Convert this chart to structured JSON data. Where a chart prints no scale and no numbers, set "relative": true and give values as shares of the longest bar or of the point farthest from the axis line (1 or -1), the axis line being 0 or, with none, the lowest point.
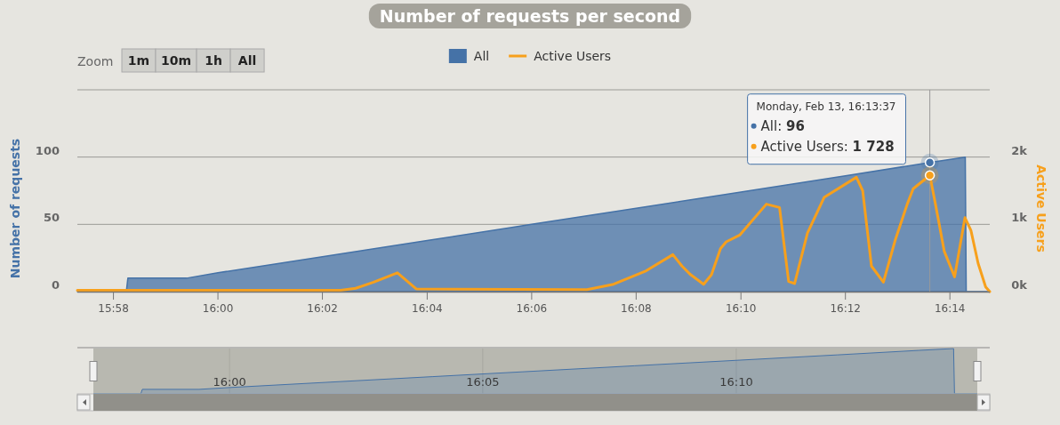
{
  "chart_data": [
    {
      "type": "area",
      "title": "Number of requests per second",
      "ylabel": "Number of requests",
      "y2label": "Active Users",
      "series": [
        {
          "name": "All",
          "color": "#4572a7",
          "x": [
            15.9552,
            15.9708,
            15.9713,
            15.99,
            16,
            16.0333,
            16.0667,
            16.1,
            16.1333,
            16.1667,
            16.2,
            16.2269,
            16.2382,
            16.2385,
            16.246
          ],
          "values": [
            0,
            0,
            10,
            10,
            14,
            26,
            38,
            50,
            62,
            74,
            86,
            96,
            100,
            0,
            0
          ]
        },
        {
          "name": "Active Users",
          "type": "line",
          "axis": "y2",
          "color": "#f7a01c",
          "x": [
            15.9552,
            16.0391,
            16.0439,
            16.0496,
            16.0572,
            16.0632,
            16.1176,
            16.1261,
            16.1365,
            16.145,
            16.1479,
            16.1507,
            16.1548,
            16.1573,
            16.1602,
            16.162,
            16.1663,
            16.1748,
            16.179,
            16.1819,
            16.1838,
            16.1879,
            16.1932,
            16.2035,
            16.2055,
            16.2083,
            16.2121,
            16.2159,
            16.2197,
            16.2216,
            16.2269,
            16.2287,
            16.2315,
            16.2348,
            16.2381,
            16.24,
            16.2423,
            16.2447,
            16.246
          ],
          "values": [
            20,
            20,
            50,
            140,
            280,
            40,
            30,
            110,
            310,
            550,
            380,
            250,
            110,
            250,
            640,
            740,
            840,
            1300,
            1250,
            150,
            120,
            870,
            1400,
            1700,
            1500,
            380,
            140,
            770,
            1300,
            1530,
            1728,
            1300,
            600,
            220,
            1100,
            910,
            420,
            70,
            0
          ]
        }
      ],
      "xlim": [
        15.9552,
        16.246
      ],
      "xticks": [
        {
          "value": 15.9667,
          "label": "15:58"
        },
        {
          "value": 16,
          "label": "16:00"
        },
        {
          "value": 16.0333,
          "label": "16:02"
        },
        {
          "value": 16.0667,
          "label": "16:04"
        },
        {
          "value": 16.1,
          "label": "16:06"
        },
        {
          "value": 16.1333,
          "label": "16:08"
        },
        {
          "value": 16.1667,
          "label": "16:10"
        },
        {
          "value": 16.2,
          "label": "16:12"
        },
        {
          "value": 16.2333,
          "label": "16:14"
        }
      ],
      "ylim": [
        0,
        150
      ],
      "yticks": [
        0,
        50,
        100,
        {
          "value": 150,
          "label": null
        }
      ],
      "y2lim": [
        0,
        3000
      ],
      "y2ticks": [
        {
          "value": 0,
          "label": "0k"
        },
        {
          "value": 1000,
          "label": "1k"
        },
        {
          "value": 2000,
          "label": "2k"
        }
      ],
      "grid": "y",
      "legend": "top",
      "ref_lines": [
        {
          "axis": "x",
          "value": 16.2269,
          "color": "#999999"
        }
      ],
      "annotations": [
        {
          "text": "Monday, Feb 13, 16:13:37\nAll: 96\nActive Users: 1 728",
          "x": 16.2269,
          "y": 96
        },
        "Zoom",
        "1m",
        "10m",
        "1h",
        "All"
      ]
    },
    {
      "type": "area",
      "relative": true,
      "tick_labels": "x",
      "grid": "x",
      "series": [
        {
          "color": "#4572a7",
          "x": [
            15.9552,
            15.9708,
            15.9713,
            15.99,
            16,
            16.0333,
            16.0667,
            16.1,
            16.1333,
            16.1667,
            16.2,
            16.2269,
            16.2382,
            16.2385,
            16.246
          ],
          "values": [
            0,
            0,
            0.1,
            0.1,
            0.14,
            0.26,
            0.38,
            0.5,
            0.62,
            0.74,
            0.86,
            0.96,
            1,
            0,
            0
          ]
        }
      ],
      "xlim": [
        15.9552,
        16.246
      ],
      "xticks": [
        {
          "value": 16,
          "label": "16:00"
        },
        {
          "value": 16.0833,
          "label": "16:05"
        },
        {
          "value": 16.1667,
          "label": "16:10"
        }
      ]
    }
  ]
}
